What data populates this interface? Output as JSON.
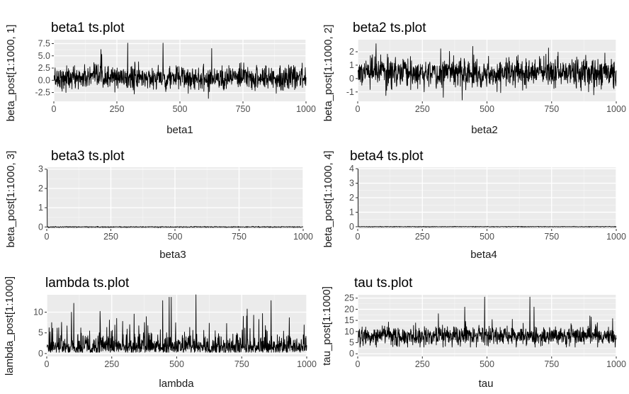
{
  "chart_data": [
    {
      "type": "line",
      "title": "beta1 ts.plot",
      "xlabel": "beta1",
      "ylabel": "beta_post[1:1000, 1]",
      "xlim": [
        0,
        1000
      ],
      "ylim": [
        -4.3,
        8.3
      ],
      "xticks": [
        0,
        250,
        500,
        750,
        1000
      ],
      "yticks": [
        -2.5,
        0.0,
        2.5,
        5.0,
        7.5
      ],
      "ytick_labels": [
        "-2.5",
        "0.0",
        "2.5",
        "5.0",
        "7.5"
      ],
      "grid": true,
      "series_summary": {
        "n": 1000,
        "center": 0.5,
        "spread": 1.2,
        "low_spike": -3.9,
        "spike_values": [
          7.6,
          6.5,
          6.3,
          5.3,
          -3.7
        ]
      },
      "x_sample": [
        0,
        100,
        200,
        292,
        300,
        400,
        500,
        600,
        700,
        800,
        900,
        1000
      ],
      "y_sample": [
        1.0,
        0.6,
        0.3,
        7.6,
        0.8,
        0.9,
        0.1,
        0.4,
        0.2,
        0.3,
        0.5,
        0.6
      ]
    },
    {
      "type": "line",
      "title": "beta2 ts.plot",
      "xlabel": "beta2",
      "ylabel": "beta_post[1:1000, 2]",
      "xlim": [
        0,
        1000
      ],
      "ylim": [
        -1.7,
        2.9
      ],
      "xticks": [
        0,
        250,
        500,
        750,
        1000
      ],
      "yticks": [
        -1,
        0,
        1,
        2
      ],
      "ytick_labels": [
        "-1",
        "0",
        "1",
        "2"
      ],
      "grid": true,
      "series_summary": {
        "n": 1000,
        "center": 0.45,
        "spread": 0.55,
        "spike_values": [
          2.6,
          2.4,
          -1.6,
          -1.4
        ]
      },
      "x_sample": [
        0,
        70,
        200,
        300,
        400,
        500,
        600,
        700,
        800,
        900,
        1000
      ],
      "y_sample": [
        0.5,
        2.6,
        0.4,
        0.3,
        0.6,
        0.2,
        0.5,
        0.4,
        0.5,
        0.3,
        0.6
      ]
    },
    {
      "type": "line",
      "title": "beta3 ts.plot",
      "xlabel": "beta3",
      "ylabel": "beta_post[1:1000, 3]",
      "xlim": [
        0,
        1000
      ],
      "ylim": [
        -0.1,
        3.1
      ],
      "xticks": [
        0,
        250,
        500,
        750,
        1000
      ],
      "yticks": [
        0,
        1,
        2,
        3
      ],
      "ytick_labels": [
        "0",
        "1",
        "2",
        "3"
      ],
      "grid": true,
      "series_summary": {
        "n": 1000,
        "initial_value": 3.0,
        "steady_value": 0.0
      },
      "x_sample": [
        0,
        1,
        250,
        500,
        750,
        1000
      ],
      "y_sample": [
        3.0,
        0.0,
        0.0,
        0.0,
        0.0,
        0.0
      ]
    },
    {
      "type": "line",
      "title": "beta4 ts.plot",
      "xlabel": "beta4",
      "ylabel": "beta_post[1:1000, 4]",
      "xlim": [
        0,
        1000
      ],
      "ylim": [
        -0.15,
        4.1
      ],
      "xticks": [
        0,
        250,
        500,
        750,
        1000
      ],
      "yticks": [
        0,
        1,
        2,
        3,
        4
      ],
      "ytick_labels": [
        "0",
        "1",
        "2",
        "3",
        "4"
      ],
      "grid": true,
      "series_summary": {
        "n": 1000,
        "initial_value": 4.0,
        "steady_value": 0.0
      },
      "x_sample": [
        0,
        1,
        250,
        500,
        750,
        1000
      ],
      "y_sample": [
        4.0,
        0.0,
        0.0,
        0.0,
        0.0,
        0.0
      ]
    },
    {
      "type": "line",
      "title": "lambda ts.plot",
      "xlabel": "lambda",
      "ylabel": "lambda_post[1:1000]",
      "xlim": [
        0,
        1000
      ],
      "ylim": [
        -0.7,
        14.2
      ],
      "xticks": [
        0,
        250,
        500,
        750,
        1000
      ],
      "yticks": [
        0,
        5,
        10
      ],
      "ytick_labels": [
        "0",
        "5",
        "10"
      ],
      "grid": true,
      "series_summary": {
        "n": 1000,
        "floor": 0.3,
        "center": 2.4,
        "spike_values": [
          13.6,
          12.8,
          10.0,
          9.0,
          8.5,
          7.5,
          7.0
        ]
      },
      "x_sample": [
        0,
        100,
        200,
        300,
        400,
        445,
        470,
        500,
        600,
        700,
        800,
        900,
        1000
      ],
      "y_sample": [
        1.5,
        2.5,
        3.0,
        2.0,
        5.0,
        12.8,
        13.6,
        3.0,
        2.0,
        2.5,
        2.0,
        3.0,
        2.0
      ]
    },
    {
      "type": "line",
      "title": "tau ts.plot",
      "xlabel": "tau",
      "ylabel": "tau_post[1:1000]",
      "xlim": [
        0,
        1000
      ],
      "ylim": [
        -1.2,
        26.5
      ],
      "xticks": [
        0,
        250,
        500,
        750,
        1000
      ],
      "yticks": [
        0,
        5,
        10,
        15,
        20,
        25
      ],
      "ytick_labels": [
        "0",
        "5",
        "10",
        "15",
        "20",
        "25"
      ],
      "grid": true,
      "series_summary": {
        "n": 1000,
        "floor": 3.0,
        "center": 8.0,
        "spread": 2.2,
        "spike_values": [
          25.5,
          21.0,
          18.0,
          17.0,
          16.5
        ]
      },
      "x_sample": [
        0,
        100,
        200,
        300,
        413,
        500,
        600,
        665,
        700,
        800,
        900,
        1000
      ],
      "y_sample": [
        5.0,
        8.0,
        9.0,
        8.5,
        21.0,
        8.0,
        8.5,
        25.5,
        7.5,
        8.0,
        8.5,
        7.0
      ]
    }
  ]
}
